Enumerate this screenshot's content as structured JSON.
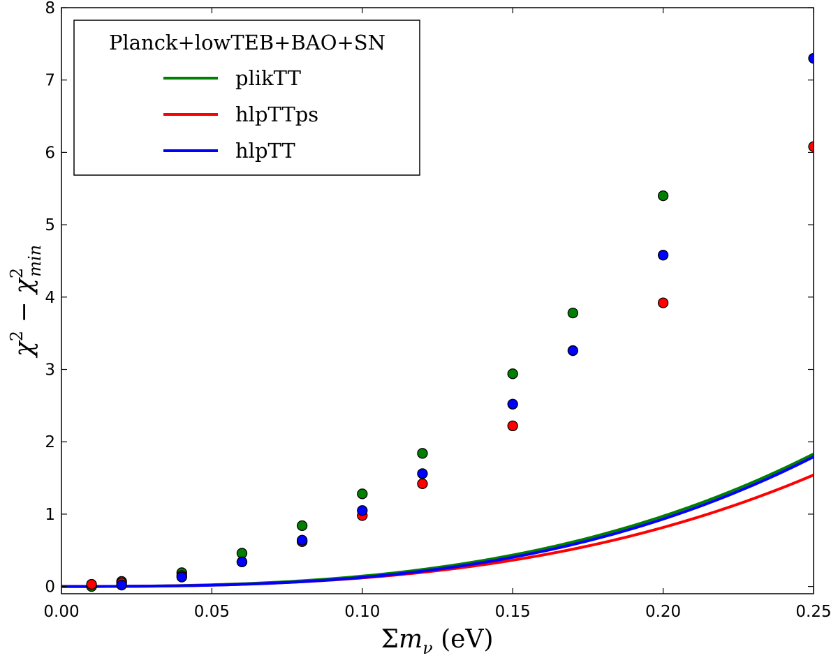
{
  "chart_data": {
    "type": "line",
    "title": "",
    "xlabel": "Σm_ν (eV)",
    "ylabel": "χ² − χ²_min",
    "xlim": [
      0.0,
      0.25
    ],
    "ylim": [
      -0.1,
      8.0
    ],
    "x_ticks": [
      0.0,
      0.05,
      0.1,
      0.15,
      0.2,
      0.25
    ],
    "x_tick_labels": [
      "0.00",
      "0.05",
      "0.10",
      "0.15",
      "0.20",
      "0.25"
    ],
    "y_ticks": [
      0,
      1,
      2,
      3,
      4,
      5,
      6,
      7,
      8
    ],
    "y_tick_labels": [
      "0",
      "1",
      "2",
      "3",
      "4",
      "5",
      "6",
      "7",
      "8"
    ],
    "grid": false,
    "legend": {
      "title": "Planck+lowTEB+BAO+SN",
      "position": "top-left"
    },
    "series": [
      {
        "name": "plikTT",
        "color": "#008000",
        "fit_coef": [
          4.3,
          100.0
        ],
        "points": [
          {
            "x": 0.01,
            "y": 0.0
          },
          {
            "x": 0.02,
            "y": 0.07
          },
          {
            "x": 0.04,
            "y": 0.19
          },
          {
            "x": 0.06,
            "y": 0.46
          },
          {
            "x": 0.08,
            "y": 0.84
          },
          {
            "x": 0.1,
            "y": 1.28
          },
          {
            "x": 0.12,
            "y": 1.84
          },
          {
            "x": 0.15,
            "y": 2.94
          },
          {
            "x": 0.17,
            "y": 3.78
          },
          {
            "x": 0.2,
            "y": 5.4
          }
        ]
      },
      {
        "name": "hlpTTps",
        "color": "#ff0000",
        "fit_coef": [
          3.4,
          85.0
        ],
        "points": [
          {
            "x": 0.01,
            "y": 0.03
          },
          {
            "x": 0.02,
            "y": 0.05
          },
          {
            "x": 0.04,
            "y": 0.15
          },
          {
            "x": 0.06,
            "y": 0.34
          },
          {
            "x": 0.08,
            "y": 0.62
          },
          {
            "x": 0.1,
            "y": 0.98
          },
          {
            "x": 0.12,
            "y": 1.42
          },
          {
            "x": 0.15,
            "y": 2.22
          },
          {
            "x": 0.2,
            "y": 3.92
          },
          {
            "x": 0.25,
            "y": 6.08
          }
        ]
      },
      {
        "name": "hlpTT",
        "color": "#0000ff",
        "fit_coef": [
          1.8,
          107.5
        ],
        "points": [
          {
            "x": 0.02,
            "y": 0.02
          },
          {
            "x": 0.04,
            "y": 0.13
          },
          {
            "x": 0.06,
            "y": 0.34
          },
          {
            "x": 0.08,
            "y": 0.64
          },
          {
            "x": 0.1,
            "y": 1.05
          },
          {
            "x": 0.12,
            "y": 1.56
          },
          {
            "x": 0.15,
            "y": 2.52
          },
          {
            "x": 0.17,
            "y": 3.26
          },
          {
            "x": 0.2,
            "y": 4.58
          },
          {
            "x": 0.25,
            "y": 7.3
          }
        ]
      }
    ]
  }
}
